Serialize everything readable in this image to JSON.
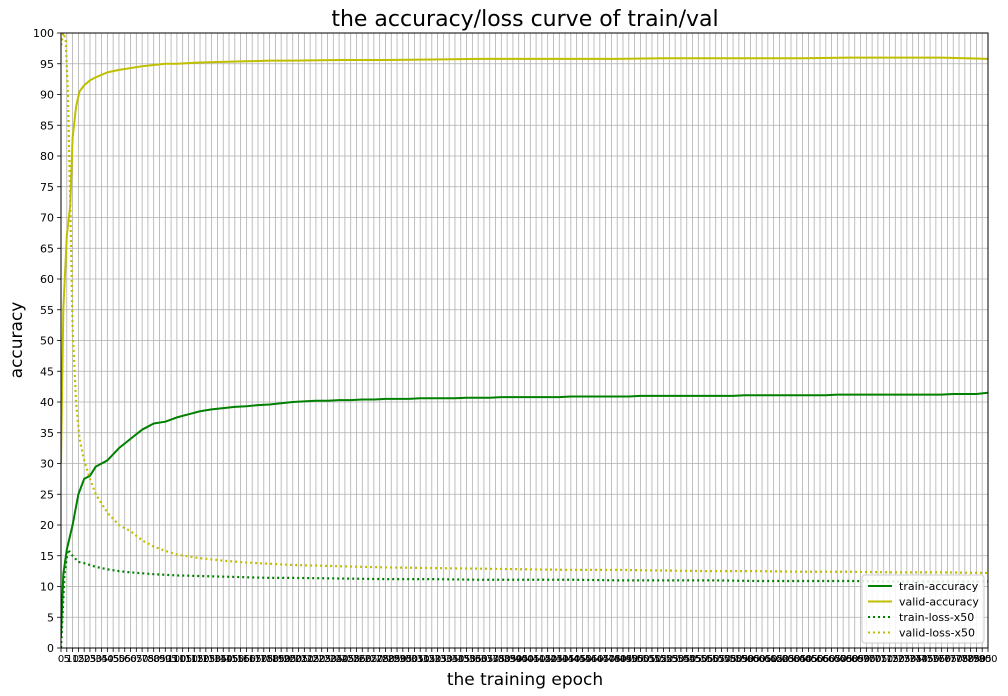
{
  "chart_data": {
    "type": "line",
    "title": "the accuracy/loss curve of train/val",
    "xlabel": "the training epoch",
    "ylabel": "accuracy",
    "xlim": [
      0,
      800
    ],
    "ylim": [
      0,
      100
    ],
    "grid": true,
    "legend_position": "bottom-right",
    "y_ticks": [
      "0",
      "5",
      "10",
      "15",
      "20",
      "25",
      "30",
      "35",
      "40",
      "45",
      "50",
      "55",
      "60",
      "65",
      "70",
      "75",
      "80",
      "85",
      "90",
      "95",
      "100"
    ],
    "x_ticks": [
      "0",
      "5",
      "10",
      "15",
      "20",
      "25",
      "30",
      "35",
      "40",
      "45",
      "50",
      "55",
      "60",
      "65",
      "70",
      "75",
      "80",
      "85",
      "90",
      "95",
      "100",
      "105",
      "110",
      "115",
      "120",
      "125",
      "130",
      "135",
      "140",
      "145",
      "150",
      "155",
      "160",
      "165",
      "170",
      "175",
      "180",
      "185",
      "190",
      "195",
      "200",
      "205",
      "210",
      "215",
      "220",
      "225",
      "230",
      "235",
      "240",
      "245",
      "250",
      "255",
      "260",
      "265",
      "270",
      "275",
      "280",
      "285",
      "290",
      "295",
      "300",
      "305",
      "310",
      "315",
      "320",
      "325",
      "330",
      "335",
      "340",
      "345",
      "350",
      "355",
      "360",
      "365",
      "370",
      "375",
      "380",
      "385",
      "390",
      "395",
      "400",
      "405",
      "410",
      "415",
      "420",
      "425",
      "430",
      "435",
      "440",
      "445",
      "450",
      "455",
      "460",
      "465",
      "470",
      "475",
      "480",
      "485",
      "490",
      "495",
      "500",
      "505",
      "510",
      "515",
      "520",
      "525",
      "530",
      "535",
      "540",
      "545",
      "550",
      "555",
      "560",
      "565",
      "570",
      "575",
      "580",
      "585",
      "590",
      "595",
      "600",
      "605",
      "610",
      "615",
      "620",
      "625",
      "630",
      "635",
      "640",
      "645",
      "650",
      "655",
      "660",
      "665",
      "670",
      "675",
      "680",
      "685",
      "690",
      "695",
      "700",
      "705",
      "710",
      "715",
      "720",
      "725",
      "730",
      "735",
      "740",
      "745",
      "750",
      "755",
      "760",
      "765",
      "770",
      "775",
      "780",
      "785",
      "790",
      "795",
      "800"
    ],
    "series": [
      {
        "name": "train-accuracy",
        "color": "#008000",
        "style": "solid",
        "x": [
          0,
          2,
          5,
          10,
          15,
          20,
          25,
          30,
          40,
          50,
          60,
          70,
          80,
          90,
          100,
          110,
          120,
          130,
          140,
          150,
          160,
          170,
          180,
          190,
          200,
          210,
          220,
          230,
          240,
          250,
          260,
          270,
          280,
          290,
          300,
          310,
          320,
          330,
          340,
          350,
          360,
          370,
          380,
          390,
          400,
          410,
          420,
          430,
          440,
          450,
          460,
          470,
          480,
          490,
          500,
          510,
          520,
          530,
          540,
          550,
          560,
          570,
          580,
          590,
          600,
          610,
          620,
          630,
          640,
          650,
          660,
          670,
          680,
          690,
          700,
          710,
          720,
          730,
          740,
          750,
          760,
          770,
          780,
          790,
          800
        ],
        "y": [
          2,
          12,
          16,
          20,
          25,
          27.5,
          28,
          29.5,
          30.5,
          32.5,
          34,
          35.5,
          36.5,
          36.8,
          37.5,
          38,
          38.5,
          38.8,
          39,
          39.2,
          39.3,
          39.5,
          39.6,
          39.8,
          40,
          40.1,
          40.2,
          40.2,
          40.3,
          40.3,
          40.4,
          40.4,
          40.5,
          40.5,
          40.5,
          40.6,
          40.6,
          40.6,
          40.6,
          40.7,
          40.7,
          40.7,
          40.8,
          40.8,
          40.8,
          40.8,
          40.8,
          40.8,
          40.9,
          40.9,
          40.9,
          40.9,
          40.9,
          40.9,
          41,
          41,
          41,
          41,
          41,
          41,
          41,
          41,
          41,
          41.1,
          41.1,
          41.1,
          41.1,
          41.1,
          41.1,
          41.1,
          41.1,
          41.2,
          41.2,
          41.2,
          41.2,
          41.2,
          41.2,
          41.2,
          41.2,
          41.2,
          41.2,
          41.3,
          41.3,
          41.3,
          41.5
        ]
      },
      {
        "name": "valid-accuracy",
        "color": "#bfbf00",
        "style": "solid",
        "x": [
          0,
          2,
          5,
          8,
          10,
          13,
          16,
          20,
          25,
          30,
          40,
          50,
          60,
          70,
          80,
          90,
          100,
          120,
          140,
          160,
          180,
          200,
          240,
          280,
          320,
          360,
          400,
          440,
          480,
          520,
          560,
          600,
          640,
          680,
          720,
          760,
          800
        ],
        "y": [
          30,
          55,
          67,
          72,
          83,
          88,
          90.5,
          91.5,
          92.3,
          92.8,
          93.6,
          94,
          94.3,
          94.6,
          94.8,
          95,
          95,
          95.2,
          95.3,
          95.4,
          95.5,
          95.5,
          95.6,
          95.6,
          95.7,
          95.8,
          95.8,
          95.8,
          95.8,
          95.9,
          95.9,
          95.9,
          95.9,
          96,
          96,
          96,
          95.8
        ]
      },
      {
        "name": "train-loss-x50",
        "color": "#008000",
        "style": "dotted",
        "x": [
          0,
          3,
          6,
          10,
          15,
          20,
          30,
          40,
          50,
          60,
          80,
          100,
          120,
          140,
          160,
          180,
          200,
          240,
          280,
          320,
          360,
          400,
          440,
          480,
          520,
          560,
          600,
          640,
          680,
          720,
          760,
          800
        ],
        "y": [
          0,
          12,
          16,
          15,
          14,
          13.8,
          13.2,
          12.8,
          12.5,
          12.3,
          12,
          11.8,
          11.7,
          11.6,
          11.5,
          11.4,
          11.4,
          11.3,
          11.2,
          11.2,
          11.1,
          11.1,
          11.1,
          11,
          11,
          11,
          10.9,
          10.9,
          10.9,
          10.8,
          10.8,
          10.8
        ]
      },
      {
        "name": "valid-loss-x50",
        "color": "#bfbf00",
        "style": "dotted",
        "x": [
          0,
          2,
          4,
          6,
          8,
          10,
          13,
          16,
          20,
          25,
          30,
          35,
          40,
          45,
          50,
          55,
          60,
          70,
          80,
          90,
          100,
          120,
          140,
          160,
          180,
          200,
          240,
          280,
          320,
          360,
          400,
          440,
          480,
          520,
          560,
          600,
          640,
          680,
          720,
          760,
          800
        ],
        "y": [
          98,
          100,
          99,
          90,
          72,
          52,
          40,
          34,
          30.5,
          27.5,
          25,
          23.5,
          22,
          21,
          20,
          19.5,
          19,
          17.5,
          16.5,
          15.8,
          15.2,
          14.6,
          14.2,
          13.9,
          13.7,
          13.5,
          13.3,
          13.1,
          13,
          12.9,
          12.8,
          12.7,
          12.7,
          12.6,
          12.5,
          12.5,
          12.4,
          12.4,
          12.3,
          12.3,
          12.2
        ]
      }
    ]
  }
}
